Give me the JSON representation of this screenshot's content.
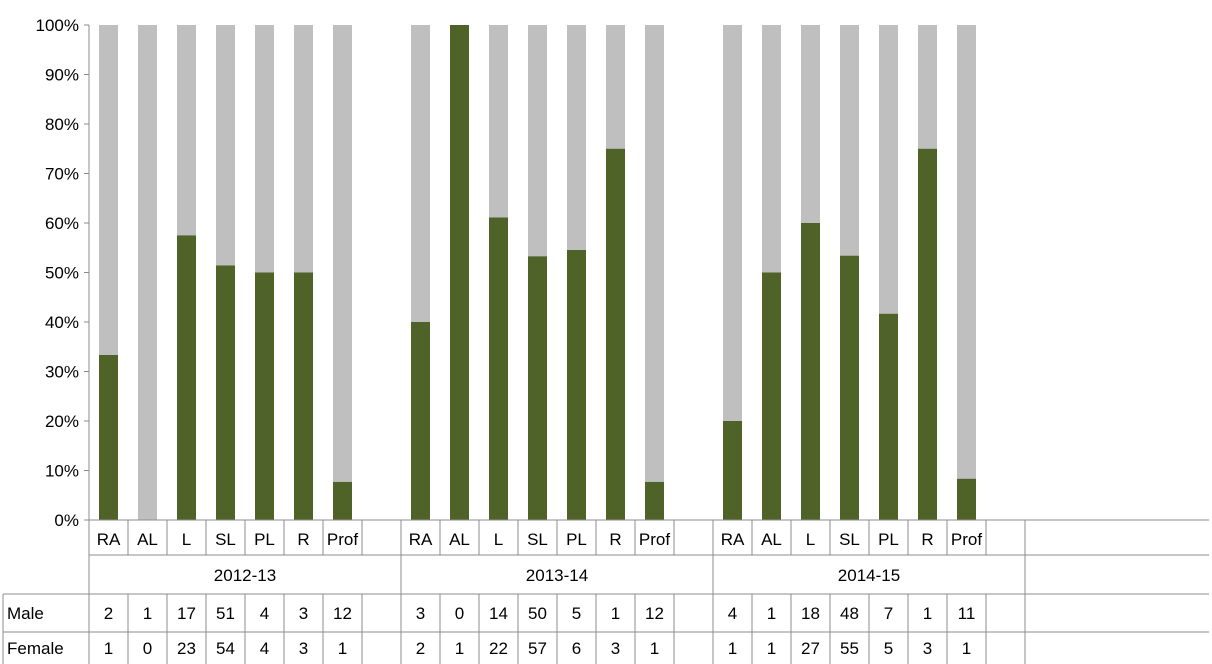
{
  "chart_data": {
    "type": "bar",
    "stacked": true,
    "percent": true,
    "ylim": [
      0,
      100
    ],
    "ytick_labels": [
      "0%",
      "10%",
      "20%",
      "30%",
      "40%",
      "50%",
      "60%",
      "70%",
      "80%",
      "90%",
      "100%"
    ],
    "categories": [
      "RA",
      "AL",
      "L",
      "SL",
      "PL",
      "R",
      "Prof"
    ],
    "groups": [
      "2012-13",
      "2013-14",
      "2014-15"
    ],
    "series": [
      {
        "name": "Female",
        "color": "#4f6228",
        "values": [
          [
            1,
            0,
            23,
            54,
            4,
            3,
            1
          ],
          [
            2,
            1,
            22,
            57,
            6,
            3,
            1
          ],
          [
            1,
            1,
            27,
            55,
            5,
            3,
            1
          ]
        ]
      },
      {
        "name": "Male",
        "color": "#bfbfbf",
        "values": [
          [
            2,
            1,
            17,
            51,
            4,
            3,
            12
          ],
          [
            3,
            0,
            14,
            50,
            5,
            1,
            12
          ],
          [
            4,
            1,
            18,
            48,
            7,
            1,
            11
          ]
        ]
      }
    ],
    "table_rows": [
      {
        "label": "Male",
        "values": [
          [
            2,
            1,
            17,
            51,
            4,
            3,
            12
          ],
          [
            3,
            0,
            14,
            50,
            5,
            1,
            12
          ],
          [
            4,
            1,
            18,
            48,
            7,
            1,
            11
          ]
        ]
      },
      {
        "label": "Female",
        "values": [
          [
            1,
            0,
            23,
            54,
            4,
            3,
            1
          ],
          [
            2,
            1,
            22,
            57,
            6,
            3,
            1
          ],
          [
            1,
            1,
            27,
            55,
            5,
            3,
            1
          ]
        ]
      }
    ],
    "grid": false,
    "legend": "table"
  }
}
